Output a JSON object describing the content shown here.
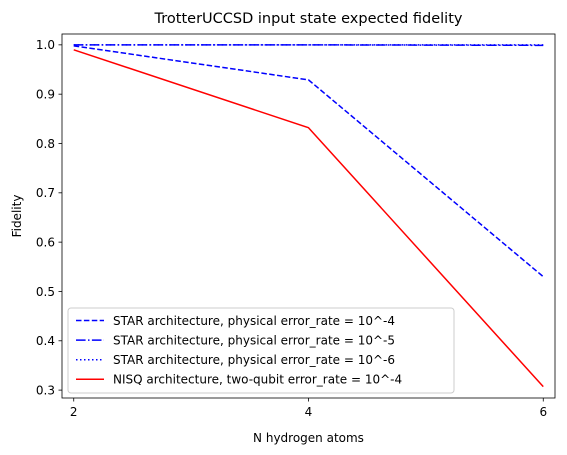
{
  "chart_data": {
    "type": "line",
    "title": "TrotterUCCSD input state expected fidelity",
    "xlabel": "N hydrogen atoms",
    "ylabel": "Fidelity",
    "x": [
      2,
      4,
      6
    ],
    "xlim": [
      1.9,
      6.1
    ],
    "ylim": [
      0.284,
      1.022
    ],
    "xticks": [
      2,
      4,
      6
    ],
    "yticks": [
      0.3,
      0.4,
      0.5,
      0.6,
      0.7,
      0.8,
      0.9,
      1.0
    ],
    "ytick_labels": [
      "0.3",
      "0.4",
      "0.5",
      "0.6",
      "0.7",
      "0.8",
      "0.9",
      "1.0"
    ],
    "xtick_labels": [
      "2",
      "4",
      "6"
    ],
    "grid": false,
    "legend_position": "lower-left",
    "series": [
      {
        "name": "STAR architecture, physical error_rate = 10^-4",
        "values": [
          0.998,
          0.929,
          0.53
        ],
        "color": "#0000ff",
        "linestyle": "dashed"
      },
      {
        "name": "STAR architecture, physical error_rate = 10^-5",
        "values": [
          1.0,
          1.0,
          0.999
        ],
        "color": "#0000ff",
        "linestyle": "dashdot"
      },
      {
        "name": "STAR architecture, physical error_rate = 10^-6",
        "values": [
          1.0,
          1.0,
          1.0
        ],
        "color": "#0000ff",
        "linestyle": "dotted"
      },
      {
        "name": "NISQ architecture, two-qubit error_rate = 10^-4",
        "values": [
          0.99,
          0.832,
          0.307
        ],
        "color": "#ff0000",
        "linestyle": "solid"
      }
    ]
  }
}
